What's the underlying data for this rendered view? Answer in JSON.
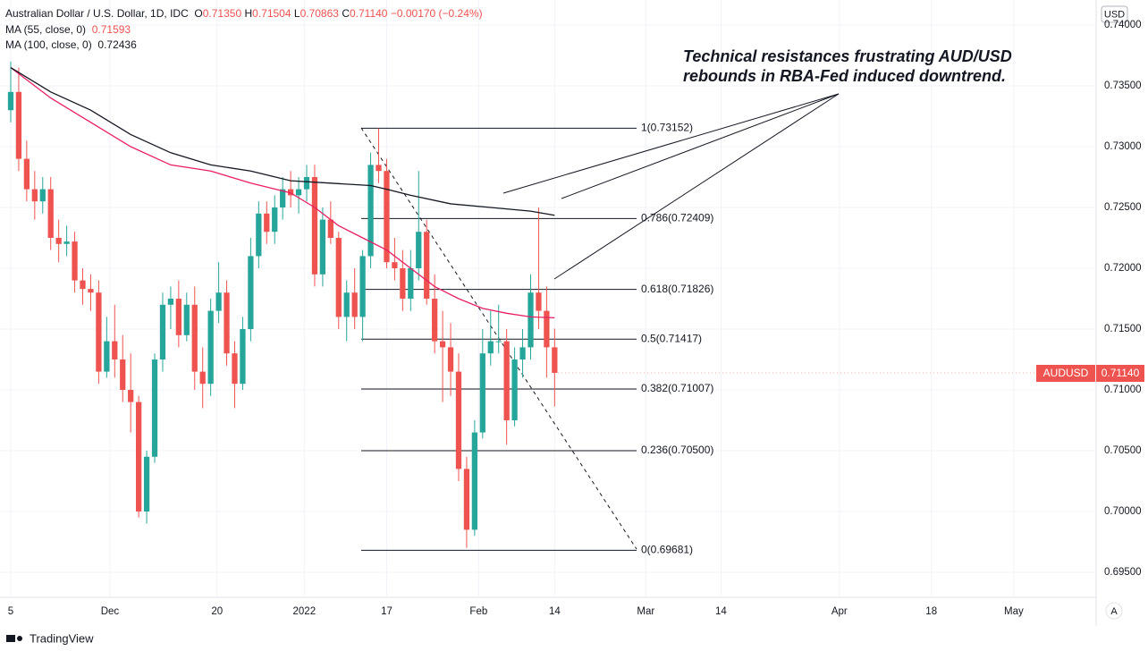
{
  "chart_data": {
    "type": "candlestick",
    "title": "Australian Dollar / U.S. Dollar, 1D, IDC",
    "ohlc_legend": [
      {
        "key": "O",
        "value": "0.71350"
      },
      {
        "key": "H",
        "value": "0.71504"
      },
      {
        "key": "L",
        "value": "0.70863"
      },
      {
        "key": "C",
        "value": "0.71140"
      },
      {
        "value": "−0.00170 (−0.24%)"
      }
    ],
    "annotation": [
      "Technical resistances frustrating AUD/USD",
      "rebounds in RBA-Fed induced downtrend."
    ],
    "currency": "USD",
    "auto_label": "A",
    "brand": "TradingView",
    "up_color": "#26a69a",
    "down_color": "#ef5350",
    "open": [
      0.733,
      0.7345,
      0.729,
      0.7265,
      0.7255,
      0.7265,
      0.7225,
      0.722,
      0.7222,
      0.719,
      0.7183,
      0.718,
      0.7115,
      0.714,
      0.7125,
      0.71,
      0.709,
      0.7,
      0.7045,
      0.7125,
      0.717,
      0.7175,
      0.7145,
      0.717,
      0.7115,
      0.7105,
      0.7165,
      0.718,
      0.713,
      0.7105,
      0.715,
      0.721,
      0.7245,
      0.723,
      0.725,
      0.7265,
      0.726,
      0.7265,
      0.7275,
      0.7195,
      0.724,
      0.7225,
      0.716,
      0.718,
      0.716,
      0.721,
      0.7285,
      0.728,
      0.7205,
      0.72,
      0.7175,
      0.72,
      0.723,
      0.7175,
      0.714,
      0.7135,
      0.7115,
      0.7035,
      0.6985,
      0.7065,
      0.713,
      0.714,
      0.714,
      0.7075,
      0.7125,
      0.7135,
      0.718,
      0.7165,
      0.7135
    ],
    "high": [
      0.737,
      0.7365,
      0.7305,
      0.728,
      0.7275,
      0.7275,
      0.724,
      0.7235,
      0.723,
      0.72,
      0.7195,
      0.719,
      0.716,
      0.717,
      0.7145,
      0.713,
      0.7095,
      0.705,
      0.713,
      0.718,
      0.7185,
      0.719,
      0.718,
      0.7185,
      0.7135,
      0.7175,
      0.7205,
      0.719,
      0.714,
      0.716,
      0.7225,
      0.7255,
      0.7255,
      0.726,
      0.7275,
      0.728,
      0.7275,
      0.7285,
      0.7285,
      0.725,
      0.7255,
      0.723,
      0.719,
      0.72,
      0.7215,
      0.7295,
      0.7315,
      0.729,
      0.7225,
      0.7215,
      0.7215,
      0.728,
      0.724,
      0.7195,
      0.7165,
      0.7155,
      0.713,
      0.7045,
      0.7075,
      0.715,
      0.7165,
      0.717,
      0.715,
      0.7135,
      0.715,
      0.7195,
      0.725,
      0.7185,
      0.71504
    ],
    "low": [
      0.732,
      0.728,
      0.7255,
      0.724,
      0.7245,
      0.7215,
      0.7205,
      0.721,
      0.718,
      0.717,
      0.7165,
      0.7105,
      0.711,
      0.711,
      0.709,
      0.7065,
      0.6995,
      0.699,
      0.704,
      0.7115,
      0.715,
      0.7135,
      0.714,
      0.71,
      0.7085,
      0.7095,
      0.7155,
      0.712,
      0.7085,
      0.71,
      0.714,
      0.72,
      0.722,
      0.722,
      0.724,
      0.725,
      0.7245,
      0.7255,
      0.7185,
      0.7185,
      0.722,
      0.715,
      0.714,
      0.715,
      0.714,
      0.72,
      0.727,
      0.72,
      0.719,
      0.7165,
      0.7165,
      0.719,
      0.717,
      0.713,
      0.709,
      0.7095,
      0.7025,
      0.697,
      0.698,
      0.706,
      0.712,
      0.713,
      0.7055,
      0.707,
      0.711,
      0.7125,
      0.715,
      0.711,
      0.70863
    ],
    "close": [
      0.7345,
      0.729,
      0.7265,
      0.7255,
      0.7265,
      0.7225,
      0.722,
      0.7222,
      0.719,
      0.7183,
      0.718,
      0.7115,
      0.714,
      0.7125,
      0.71,
      0.709,
      0.7,
      0.7045,
      0.7125,
      0.717,
      0.7175,
      0.7145,
      0.717,
      0.7115,
      0.7105,
      0.7165,
      0.718,
      0.713,
      0.7105,
      0.715,
      0.721,
      0.7245,
      0.723,
      0.725,
      0.7265,
      0.726,
      0.7265,
      0.7275,
      0.7195,
      0.724,
      0.7225,
      0.716,
      0.718,
      0.716,
      0.721,
      0.7285,
      0.728,
      0.7205,
      0.72,
      0.7175,
      0.72,
      0.723,
      0.7175,
      0.714,
      0.7135,
      0.7115,
      0.7035,
      0.6985,
      0.7065,
      0.713,
      0.714,
      0.714,
      0.7075,
      0.7125,
      0.7135,
      0.718,
      0.7165,
      0.7135,
      0.7114
    ],
    "series": [
      {
        "name": "MA (55, close, 0)",
        "color": "#e91e63",
        "last_label": "0.71593",
        "x": [
          0,
          5,
          10,
          15,
          20,
          25,
          30,
          35,
          38,
          41,
          44,
          47,
          50,
          53,
          56,
          59,
          62,
          65,
          68
        ],
        "values": [
          0.7365,
          0.734,
          0.732,
          0.73,
          0.7285,
          0.728,
          0.727,
          0.7262,
          0.725,
          0.7235,
          0.7225,
          0.7215,
          0.72,
          0.7185,
          0.7175,
          0.7167,
          0.7163,
          0.716,
          0.71593
        ]
      },
      {
        "name": "MA (100, close, 0)",
        "color": "#131722",
        "last_label": "0.72436",
        "x": [
          0,
          5,
          10,
          15,
          20,
          25,
          30,
          35,
          40,
          45,
          47,
          50,
          55,
          60,
          65,
          68
        ],
        "values": [
          0.7365,
          0.7345,
          0.733,
          0.731,
          0.7295,
          0.7285,
          0.728,
          0.7272,
          0.727,
          0.7268,
          0.7265,
          0.726,
          0.7253,
          0.725,
          0.7247,
          0.72436
        ]
      }
    ],
    "fib_levels": [
      {
        "value": 0.73152,
        "label": "1(0.73152)"
      },
      {
        "value": 0.72409,
        "label": "0.786(0.72409)"
      },
      {
        "value": 0.71826,
        "label": "0.618(0.71826)"
      },
      {
        "value": 0.71417,
        "label": "0.5(0.71417)"
      },
      {
        "value": 0.71007,
        "label": "0.382(0.71007)"
      },
      {
        "value": 0.705,
        "label": "0.236(0.70500)"
      },
      {
        "value": 0.69681,
        "label": "0(0.69681)"
      }
    ],
    "last_price": {
      "symbol": "AUDUSD",
      "value": 0.7114,
      "label": "0.71140"
    },
    "xlim": [
      -1.34,
      135.7
    ],
    "xticks": [
      {
        "value": 0,
        "label": "5"
      },
      {
        "value": 12.4,
        "label": "Dec"
      },
      {
        "value": 25.8,
        "label": "20"
      },
      {
        "value": 36.7,
        "label": "2022"
      },
      {
        "value": 47,
        "label": "17"
      },
      {
        "value": 58.5,
        "label": "Feb"
      },
      {
        "value": 68,
        "label": "14"
      },
      {
        "value": 79.4,
        "label": "Mar"
      },
      {
        "value": 88.8,
        "label": "14"
      },
      {
        "value": 103.6,
        "label": "Apr"
      },
      {
        "value": 115.1,
        "label": "18"
      },
      {
        "value": 125.4,
        "label": "May"
      }
    ],
    "ylim": [
      0.69294,
      0.74206
    ],
    "yticks": [
      {
        "value": 0.695,
        "label": "0.69500"
      },
      {
        "value": 0.7,
        "label": "0.70000"
      },
      {
        "value": 0.705,
        "label": "0.70500"
      },
      {
        "value": 0.71,
        "label": "0.71000"
      },
      {
        "value": 0.715,
        "label": "0.71500"
      },
      {
        "value": 0.72,
        "label": "0.72000"
      },
      {
        "value": 0.725,
        "label": "0.72500"
      },
      {
        "value": 0.73,
        "label": "0.73000"
      },
      {
        "value": 0.735,
        "label": "0.73500"
      },
      {
        "value": 0.74,
        "label": "0.74000"
      }
    ],
    "grid": true
  }
}
